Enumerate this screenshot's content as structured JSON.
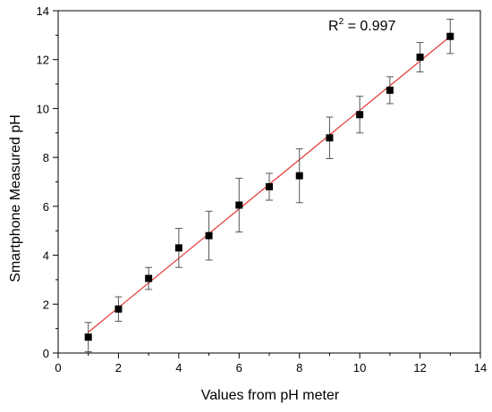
{
  "chart_data": {
    "type": "scatter",
    "xlabel": "Values from pH meter",
    "ylabel": "Smartphone Measured pH",
    "xlim": [
      0,
      14
    ],
    "ylim": [
      0,
      14
    ],
    "xticks": [
      0,
      2,
      4,
      6,
      8,
      10,
      12,
      14
    ],
    "yticks": [
      0,
      2,
      4,
      6,
      8,
      10,
      12,
      14
    ],
    "grid": false,
    "annotation": {
      "base": "R",
      "superscript": "2",
      "text": " = 0.997"
    },
    "series": [
      {
        "marker": "square",
        "color": "#000000",
        "x": [
          1,
          2,
          3,
          4,
          5,
          6,
          7,
          8,
          9,
          10,
          11,
          12,
          13
        ],
        "y": [
          0.65,
          1.8,
          3.05,
          4.3,
          4.8,
          6.05,
          6.8,
          7.25,
          8.8,
          9.75,
          10.75,
          12.1,
          12.95
        ],
        "error": [
          0.6,
          0.5,
          0.45,
          0.8,
          1.0,
          1.1,
          0.55,
          1.1,
          0.85,
          0.75,
          0.55,
          0.6,
          0.7
        ]
      }
    ],
    "fit_line": {
      "color": "#e53935",
      "x": [
        1,
        13
      ],
      "y": [
        0.85,
        12.95
      ]
    }
  }
}
